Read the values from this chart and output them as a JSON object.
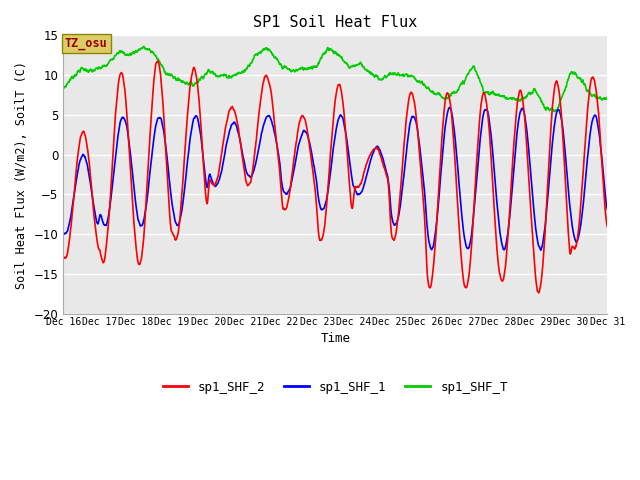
{
  "title": "SP1 Soil Heat Flux",
  "xlabel": "Time",
  "ylabel": "Soil Heat Flux (W/m2), SoilT (C)",
  "ylim": [
    -20,
    15
  ],
  "yticks": [
    -20,
    -15,
    -10,
    -5,
    0,
    5,
    10,
    15
  ],
  "color_shf2": "#ff0000",
  "color_shf1": "#0000ff",
  "color_shft": "#00cc00",
  "bg_color": "#e8e8e8",
  "fig_bg": "#ffffff",
  "tz_label": "TZ_osu",
  "tz_text_color": "#990000",
  "tz_box_color": "#ddcc66",
  "legend_labels": [
    "sp1_SHF_2",
    "sp1_SHF_1",
    "sp1_SHF_T"
  ],
  "linewidth": 1.2
}
